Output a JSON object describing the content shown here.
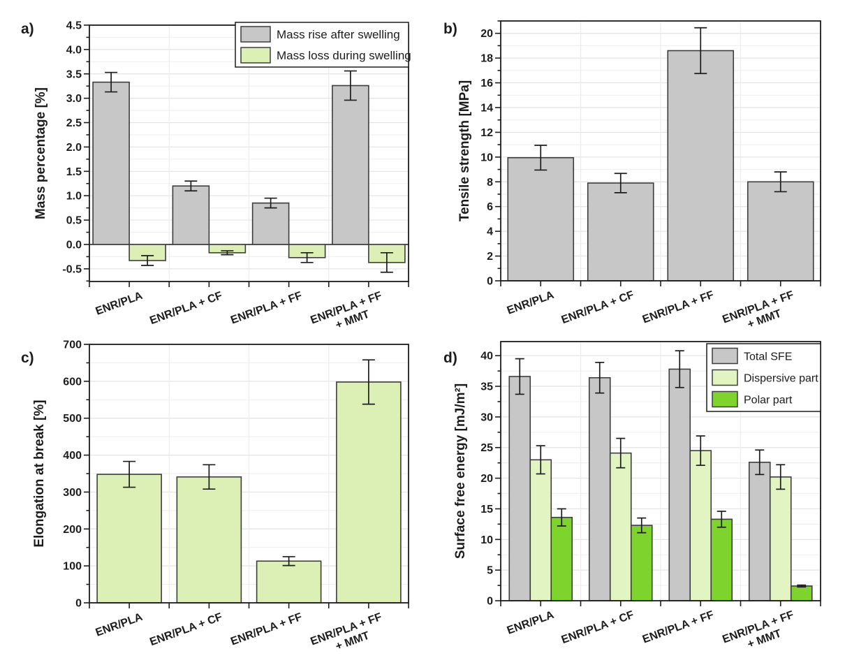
{
  "figure": {
    "background": "#ffffff",
    "categories": [
      "ENR/PLA",
      "ENR/PLA + CF",
      "ENR/PLA + FF",
      "ENR/PLA + FF\n+ MMT"
    ]
  },
  "colors": {
    "gray_bar": "#c7c7c7",
    "light_green_bar": "#dcf0b5",
    "pale_green_bar": "#e3f4c3",
    "bright_green_bar": "#7ed32c",
    "bar_border": "#3d3d3d",
    "axis": "#1c1c1c",
    "grid_major": "#e3e3e3",
    "grid_minor": "#f0f0f0",
    "grid_vertical": "#ececec",
    "legend_bg": "#ffffff"
  },
  "chart_data": [
    {
      "id": "a",
      "type": "bar",
      "panel_label": "a)",
      "ylabel": "Mass percentage [%]",
      "categories": [
        "ENR/PLA",
        "ENR/PLA + CF",
        "ENR/PLA + FF",
        "ENR/PLA + FF\n+ MMT"
      ],
      "ylim": [
        -0.76,
        4.5
      ],
      "ytick_step": 0.5,
      "ytick_decimals": 1,
      "grid": true,
      "legend_position": "top-right",
      "series": [
        {
          "name": "Mass rise after swelling",
          "color": "#c7c7c7",
          "values": [
            3.33,
            1.2,
            0.85,
            3.26
          ],
          "errors": [
            0.2,
            0.1,
            0.1,
            0.3
          ]
        },
        {
          "name": "Mass loss during swelling",
          "color": "#dcf0b5",
          "values": [
            -0.33,
            -0.17,
            -0.27,
            -0.37
          ],
          "errors": [
            0.1,
            0.04,
            0.1,
            0.2
          ]
        }
      ]
    },
    {
      "id": "b",
      "type": "bar",
      "panel_label": "b)",
      "ylabel": "Tensile strength [MPa]",
      "categories": [
        "ENR/PLA",
        "ENR/PLA + CF",
        "ENR/PLA + FF",
        "ENR/PLA + FF\n+ MMT"
      ],
      "ylim": [
        0,
        21
      ],
      "ytick_step": 2,
      "ytick_decimals": 0,
      "grid": true,
      "legend_position": "none",
      "series": [
        {
          "name": "Tensile strength",
          "color": "#c7c7c7",
          "values": [
            9.95,
            7.9,
            18.6,
            8.0
          ],
          "errors": [
            1.0,
            0.78,
            1.85,
            0.8
          ]
        }
      ]
    },
    {
      "id": "c",
      "type": "bar",
      "panel_label": "c)",
      "ylabel": "Elongation at break [%]",
      "categories": [
        "ENR/PLA",
        "ENR/PLA + CF",
        "ENR/PLA + FF",
        "ENR/PLA + FF\n+ MMT"
      ],
      "ylim": [
        0,
        700
      ],
      "ytick_step": 100,
      "ytick_decimals": 0,
      "grid": true,
      "legend_position": "none",
      "series": [
        {
          "name": "Elongation at break",
          "color": "#dcf0b5",
          "values": [
            348,
            341,
            113,
            598
          ],
          "errors": [
            35,
            33,
            12,
            60
          ]
        }
      ]
    },
    {
      "id": "d",
      "type": "bar",
      "panel_label": "d)",
      "ylabel": "Surface free energy [mJ/m²]",
      "categories": [
        "ENR/PLA",
        "ENR/PLA + CF",
        "ENR/PLA + FF",
        "ENR/PLA + FF\n+ MMT"
      ],
      "ylim": [
        0,
        42.3
      ],
      "ytick_step": 5,
      "ytick_decimals": 0,
      "grid": true,
      "legend_position": "top-right",
      "series": [
        {
          "name": "Total SFE",
          "color": "#c7c7c7",
          "values": [
            36.6,
            36.4,
            37.8,
            22.6
          ],
          "errors": [
            2.9,
            2.5,
            3.0,
            2.0
          ]
        },
        {
          "name": "Dispersive part",
          "color": "#e3f4c3",
          "values": [
            23.0,
            24.1,
            24.5,
            20.2
          ],
          "errors": [
            2.3,
            2.4,
            2.4,
            2.0
          ]
        },
        {
          "name": "Polar part",
          "color": "#7ed32c",
          "values": [
            13.6,
            12.3,
            13.3,
            2.4
          ],
          "errors": [
            1.4,
            1.2,
            1.3,
            0.15
          ]
        }
      ]
    }
  ]
}
